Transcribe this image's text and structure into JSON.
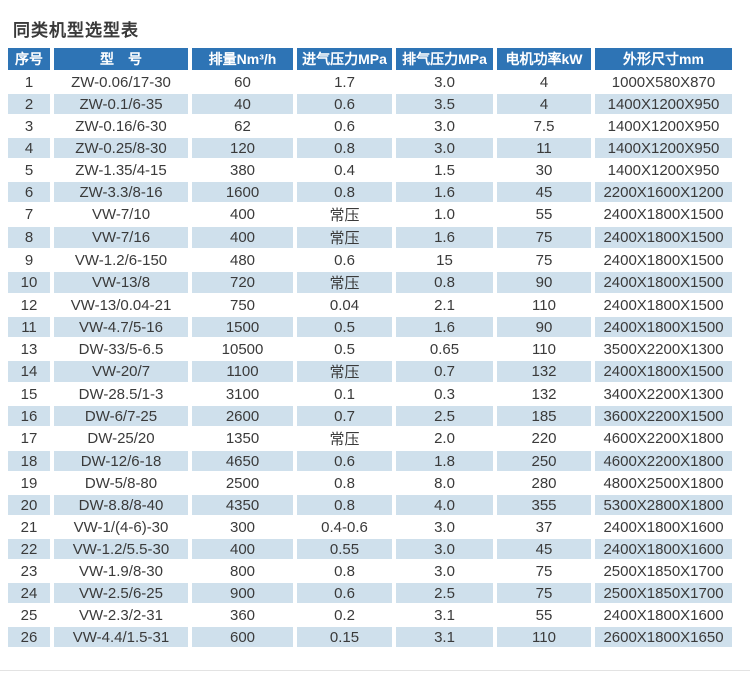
{
  "page": {
    "title": "同类机型选型表"
  },
  "colors": {
    "header_bg": "#2e74b5",
    "header_text": "#ffffff",
    "row_alt_bg": "#cfe0ec",
    "body_text": "#3a3a3a"
  },
  "table": {
    "columns": [
      "序号",
      "型　号",
      "排量Nm³/h",
      "进气压力MPa",
      "排气压力MPa",
      "电机功率kW",
      "外形尺寸mm"
    ],
    "column_keys": [
      "serial",
      "model",
      "displacement",
      "intake-pressure",
      "exhaust-pressure",
      "motor-power",
      "dimensions"
    ],
    "rows": [
      [
        "1",
        "ZW-0.06/17-30",
        "60",
        "1.7",
        "3.0",
        "4",
        "1000X580X870"
      ],
      [
        "2",
        "ZW-0.1/6-35",
        "40",
        "0.6",
        "3.5",
        "4",
        "1400X1200X950"
      ],
      [
        "3",
        "ZW-0.16/6-30",
        "62",
        "0.6",
        "3.0",
        "7.5",
        "1400X1200X950"
      ],
      [
        "4",
        "ZW-0.25/8-30",
        "120",
        "0.8",
        "3.0",
        "11",
        "1400X1200X950"
      ],
      [
        "5",
        "ZW-1.35/4-15",
        "380",
        "0.4",
        "1.5",
        "30",
        "1400X1200X950"
      ],
      [
        "6",
        "ZW-3.3/8-16",
        "1600",
        "0.8",
        "1.6",
        "45",
        "2200X1600X1200"
      ],
      [
        "7",
        "VW-7/10",
        "400",
        "常压",
        "1.0",
        "55",
        "2400X1800X1500"
      ],
      [
        "8",
        "VW-7/16",
        "400",
        "常压",
        "1.6",
        "75",
        "2400X1800X1500"
      ],
      [
        "9",
        "VW-1.2/6-150",
        "480",
        "0.6",
        "15",
        "75",
        "2400X1800X1500"
      ],
      [
        "10",
        "VW-13/8",
        "720",
        "常压",
        "0.8",
        "90",
        "2400X1800X1500"
      ],
      [
        "12",
        "VW-13/0.04-21",
        "750",
        "0.04",
        "2.1",
        "110",
        "2400X1800X1500"
      ],
      [
        "11",
        "VW-4.7/5-16",
        "1500",
        "0.5",
        "1.6",
        "90",
        "2400X1800X1500"
      ],
      [
        "13",
        "DW-33/5-6.5",
        "10500",
        "0.5",
        "0.65",
        "110",
        "3500X2200X1300"
      ],
      [
        "14",
        "VW-20/7",
        "1100",
        "常压",
        "0.7",
        "132",
        "2400X1800X1500"
      ],
      [
        "15",
        "DW-28.5/1-3",
        "3100",
        "0.1",
        "0.3",
        "132",
        "3400X2200X1300"
      ],
      [
        "16",
        "DW-6/7-25",
        "2600",
        "0.7",
        "2.5",
        "185",
        "3600X2200X1500"
      ],
      [
        "17",
        "DW-25/20",
        "1350",
        "常压",
        "2.0",
        "220",
        "4600X2200X1800"
      ],
      [
        "18",
        "DW-12/6-18",
        "4650",
        "0.6",
        "1.8",
        "250",
        "4600X2200X1800"
      ],
      [
        "19",
        "DW-5/8-80",
        "2500",
        "0.8",
        "8.0",
        "280",
        "4800X2500X1800"
      ],
      [
        "20",
        "DW-8.8/8-40",
        "4350",
        "0.8",
        "4.0",
        "355",
        "5300X2800X1800"
      ],
      [
        "21",
        "VW-1/(4-6)-30",
        "300",
        "0.4-0.6",
        "3.0",
        "37",
        "2400X1800X1600"
      ],
      [
        "22",
        "VW-1.2/5.5-30",
        "400",
        "0.55",
        "3.0",
        "45",
        "2400X1800X1600"
      ],
      [
        "23",
        "VW-1.9/8-30",
        "800",
        "0.8",
        "3.0",
        "75",
        "2500X1850X1700"
      ],
      [
        "24",
        "VW-2.5/6-25",
        "900",
        "0.6",
        "2.5",
        "75",
        "2500X1850X1700"
      ],
      [
        "25",
        "VW-2.3/2-31",
        "360",
        "0.2",
        "3.1",
        "55",
        "2400X1800X1600"
      ],
      [
        "26",
        "VW-4.4/1.5-31",
        "600",
        "0.15",
        "3.1",
        "110",
        "2600X1800X1650"
      ]
    ]
  }
}
